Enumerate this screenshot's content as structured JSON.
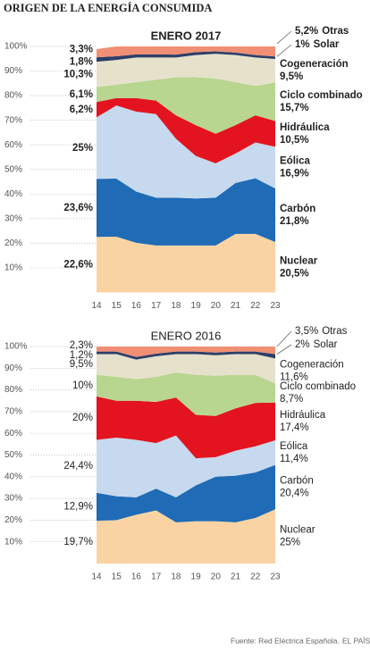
{
  "title": "ORIGEN DE LA ENERGÍA CONSUMIDA",
  "source": "Fuente: Red Eléctrica Española.",
  "brand": "EL PAÍS",
  "chart_data": [
    {
      "type": "area",
      "stacked": true,
      "title": "ENERO 2017",
      "x": [
        14,
        15,
        16,
        17,
        18,
        19,
        20,
        21,
        22,
        23
      ],
      "xlim": [
        14,
        23
      ],
      "xticks": [
        14,
        15,
        16,
        17,
        18,
        19,
        20,
        21,
        22,
        23
      ],
      "ylim": [
        0,
        100
      ],
      "yticks": [
        {
          "value": 10,
          "label": "10%"
        },
        {
          "value": 20,
          "label": "20%"
        },
        {
          "value": 30,
          "label": "30%"
        },
        {
          "value": 40,
          "label": "40%"
        },
        {
          "value": 50,
          "label": "50%"
        },
        {
          "value": 60,
          "label": "60%"
        },
        {
          "value": 70,
          "label": "70%"
        },
        {
          "value": 80,
          "label": "80%"
        },
        {
          "value": 90,
          "label": "90%"
        },
        {
          "value": 100,
          "label": "100%"
        }
      ],
      "grid": true,
      "series": [
        {
          "name": "Nuclear",
          "color": "#f9d3a3",
          "values": [
            22.6,
            22.7,
            20.2,
            19.1,
            19.1,
            19.1,
            19.1,
            23.8,
            23.8,
            20.5
          ],
          "value_labels": [
            "22,6%",
            null,
            null,
            null,
            null,
            null,
            null,
            null,
            null,
            "20,5%"
          ]
        },
        {
          "name": "Carbón",
          "color": "#1f6bb5",
          "values": [
            23.6,
            23.6,
            20.8,
            19.4,
            19.4,
            19.1,
            19.4,
            20.7,
            22.6,
            21.8
          ],
          "value_labels": [
            "23,6%",
            null,
            null,
            null,
            null,
            null,
            null,
            null,
            null,
            "21,8%"
          ]
        },
        {
          "name": "Eólica",
          "color": "#c6d9ee",
          "values": [
            25,
            29.7,
            32.5,
            34,
            24,
            17.3,
            14,
            12,
            14.6,
            16.9
          ],
          "value_labels": [
            "25%",
            null,
            null,
            null,
            null,
            null,
            null,
            null,
            null,
            "16,9%"
          ]
        },
        {
          "name": "Hidráulica",
          "color": "#e3141f",
          "values": [
            6.2,
            3,
            5.5,
            5.5,
            9.5,
            12.5,
            12,
            11.5,
            11,
            10.5
          ],
          "value_labels": [
            "6,2%",
            null,
            null,
            null,
            null,
            null,
            null,
            null,
            null,
            "10,5%"
          ]
        },
        {
          "name": "Ciclo combinado",
          "color": "#b8d68f",
          "values": [
            6.1,
            5.5,
            6.5,
            8.5,
            15.5,
            19.5,
            22.5,
            17.5,
            12,
            15.7
          ],
          "value_labels": [
            "6,1%",
            null,
            null,
            null,
            null,
            null,
            null,
            null,
            null,
            "15,7%"
          ]
        },
        {
          "name": "Cogeneración",
          "color": "#e6e1cb",
          "values": [
            10.3,
            10,
            10,
            9,
            8,
            9,
            10,
            11,
            11.5,
            9.5
          ],
          "value_labels": [
            "10,3%",
            null,
            null,
            null,
            null,
            null,
            null,
            null,
            null,
            "9,5%"
          ]
        },
        {
          "name": "Solar",
          "color": "#2d3f68",
          "values": [
            1.8,
            1.5,
            1.3,
            1.3,
            1.2,
            1.2,
            1,
            1,
            1,
            1
          ],
          "value_labels": [
            "1,8%",
            null,
            null,
            null,
            null,
            null,
            null,
            null,
            null,
            "1%"
          ]
        },
        {
          "name": "Otras",
          "color": "#f08f73",
          "values": [
            3.3,
            4,
            3.2,
            3.2,
            3.3,
            2.3,
            2,
            2.5,
            3.5,
            5.2
          ],
          "value_labels": [
            "3,3%",
            null,
            null,
            null,
            null,
            null,
            null,
            null,
            null,
            "5,2%"
          ]
        }
      ]
    },
    {
      "type": "area",
      "stacked": true,
      "title": "ENERO 2016",
      "x": [
        14,
        15,
        16,
        17,
        18,
        19,
        20,
        21,
        22,
        23
      ],
      "xlim": [
        14,
        23
      ],
      "xticks": [
        14,
        15,
        16,
        17,
        18,
        19,
        20,
        21,
        22,
        23
      ],
      "ylim": [
        0,
        100
      ],
      "yticks": [
        {
          "value": 10,
          "label": "10%"
        },
        {
          "value": 20,
          "label": "20%"
        },
        {
          "value": 30,
          "label": "30%"
        },
        {
          "value": 40,
          "label": "40%"
        },
        {
          "value": 50,
          "label": "50%"
        },
        {
          "value": 60,
          "label": "60%"
        },
        {
          "value": 70,
          "label": "70%"
        },
        {
          "value": 80,
          "label": "80%"
        },
        {
          "value": 90,
          "label": "90%"
        },
        {
          "value": 100,
          "label": "100%"
        }
      ],
      "grid": true,
      "series": [
        {
          "name": "Nuclear",
          "color": "#f9d3a3",
          "values": [
            19.7,
            20,
            22.5,
            24.5,
            19,
            19.5,
            19.5,
            19,
            21,
            25
          ],
          "value_labels": [
            "19,7%",
            null,
            null,
            null,
            null,
            null,
            null,
            null,
            null,
            "25%"
          ]
        },
        {
          "name": "Carbón",
          "color": "#1f6bb5",
          "values": [
            12.9,
            11,
            8,
            10,
            11.5,
            16.5,
            20.5,
            21.5,
            21,
            20.4
          ],
          "value_labels": [
            "12,9%",
            null,
            null,
            null,
            null,
            null,
            null,
            null,
            null,
            "20,4%"
          ]
        },
        {
          "name": "Eólica",
          "color": "#c6d9ee",
          "values": [
            24.4,
            27,
            26.5,
            21,
            28.5,
            12.5,
            9,
            11.5,
            12,
            11.4
          ],
          "value_labels": [
            "24,4%",
            null,
            null,
            null,
            null,
            null,
            null,
            null,
            null,
            "11,4%"
          ]
        },
        {
          "name": "Hidráulica",
          "color": "#e3141f",
          "values": [
            20,
            17,
            18,
            19,
            17.5,
            20,
            19,
            19.5,
            20,
            17.4
          ],
          "value_labels": [
            "20%",
            null,
            null,
            null,
            null,
            null,
            null,
            null,
            null,
            "17,4%"
          ]
        },
        {
          "name": "Ciclo combinado",
          "color": "#b8d68f",
          "values": [
            10,
            11,
            10,
            11.5,
            11.5,
            18.5,
            18.5,
            15.5,
            13,
            8.7
          ],
          "value_labels": [
            "10%",
            null,
            null,
            null,
            null,
            null,
            null,
            null,
            null,
            "8,7%"
          ]
        },
        {
          "name": "Cogeneración",
          "color": "#e6e1cb",
          "values": [
            9.5,
            10.5,
            9,
            9.5,
            8.5,
            9.5,
            9.5,
            9.5,
            9.5,
            11.6
          ],
          "value_labels": [
            "9,5%",
            null,
            null,
            null,
            null,
            null,
            null,
            null,
            null,
            "11,6%"
          ]
        },
        {
          "name": "Solar",
          "color": "#2d3f68",
          "values": [
            1.2,
            1.2,
            1.2,
            1.2,
            1.2,
            1.2,
            1.2,
            1.2,
            1.2,
            2
          ],
          "value_labels": [
            "1,2%",
            null,
            null,
            null,
            null,
            null,
            null,
            null,
            null,
            "2%"
          ]
        },
        {
          "name": "Otras",
          "color": "#f08f73",
          "values": [
            2.3,
            2.3,
            4.8,
            3.3,
            2.3,
            2.3,
            2.8,
            2.3,
            2.3,
            3.5
          ],
          "value_labels": [
            "2,3%",
            null,
            null,
            null,
            null,
            null,
            null,
            null,
            null,
            "3,5%"
          ]
        }
      ]
    }
  ]
}
